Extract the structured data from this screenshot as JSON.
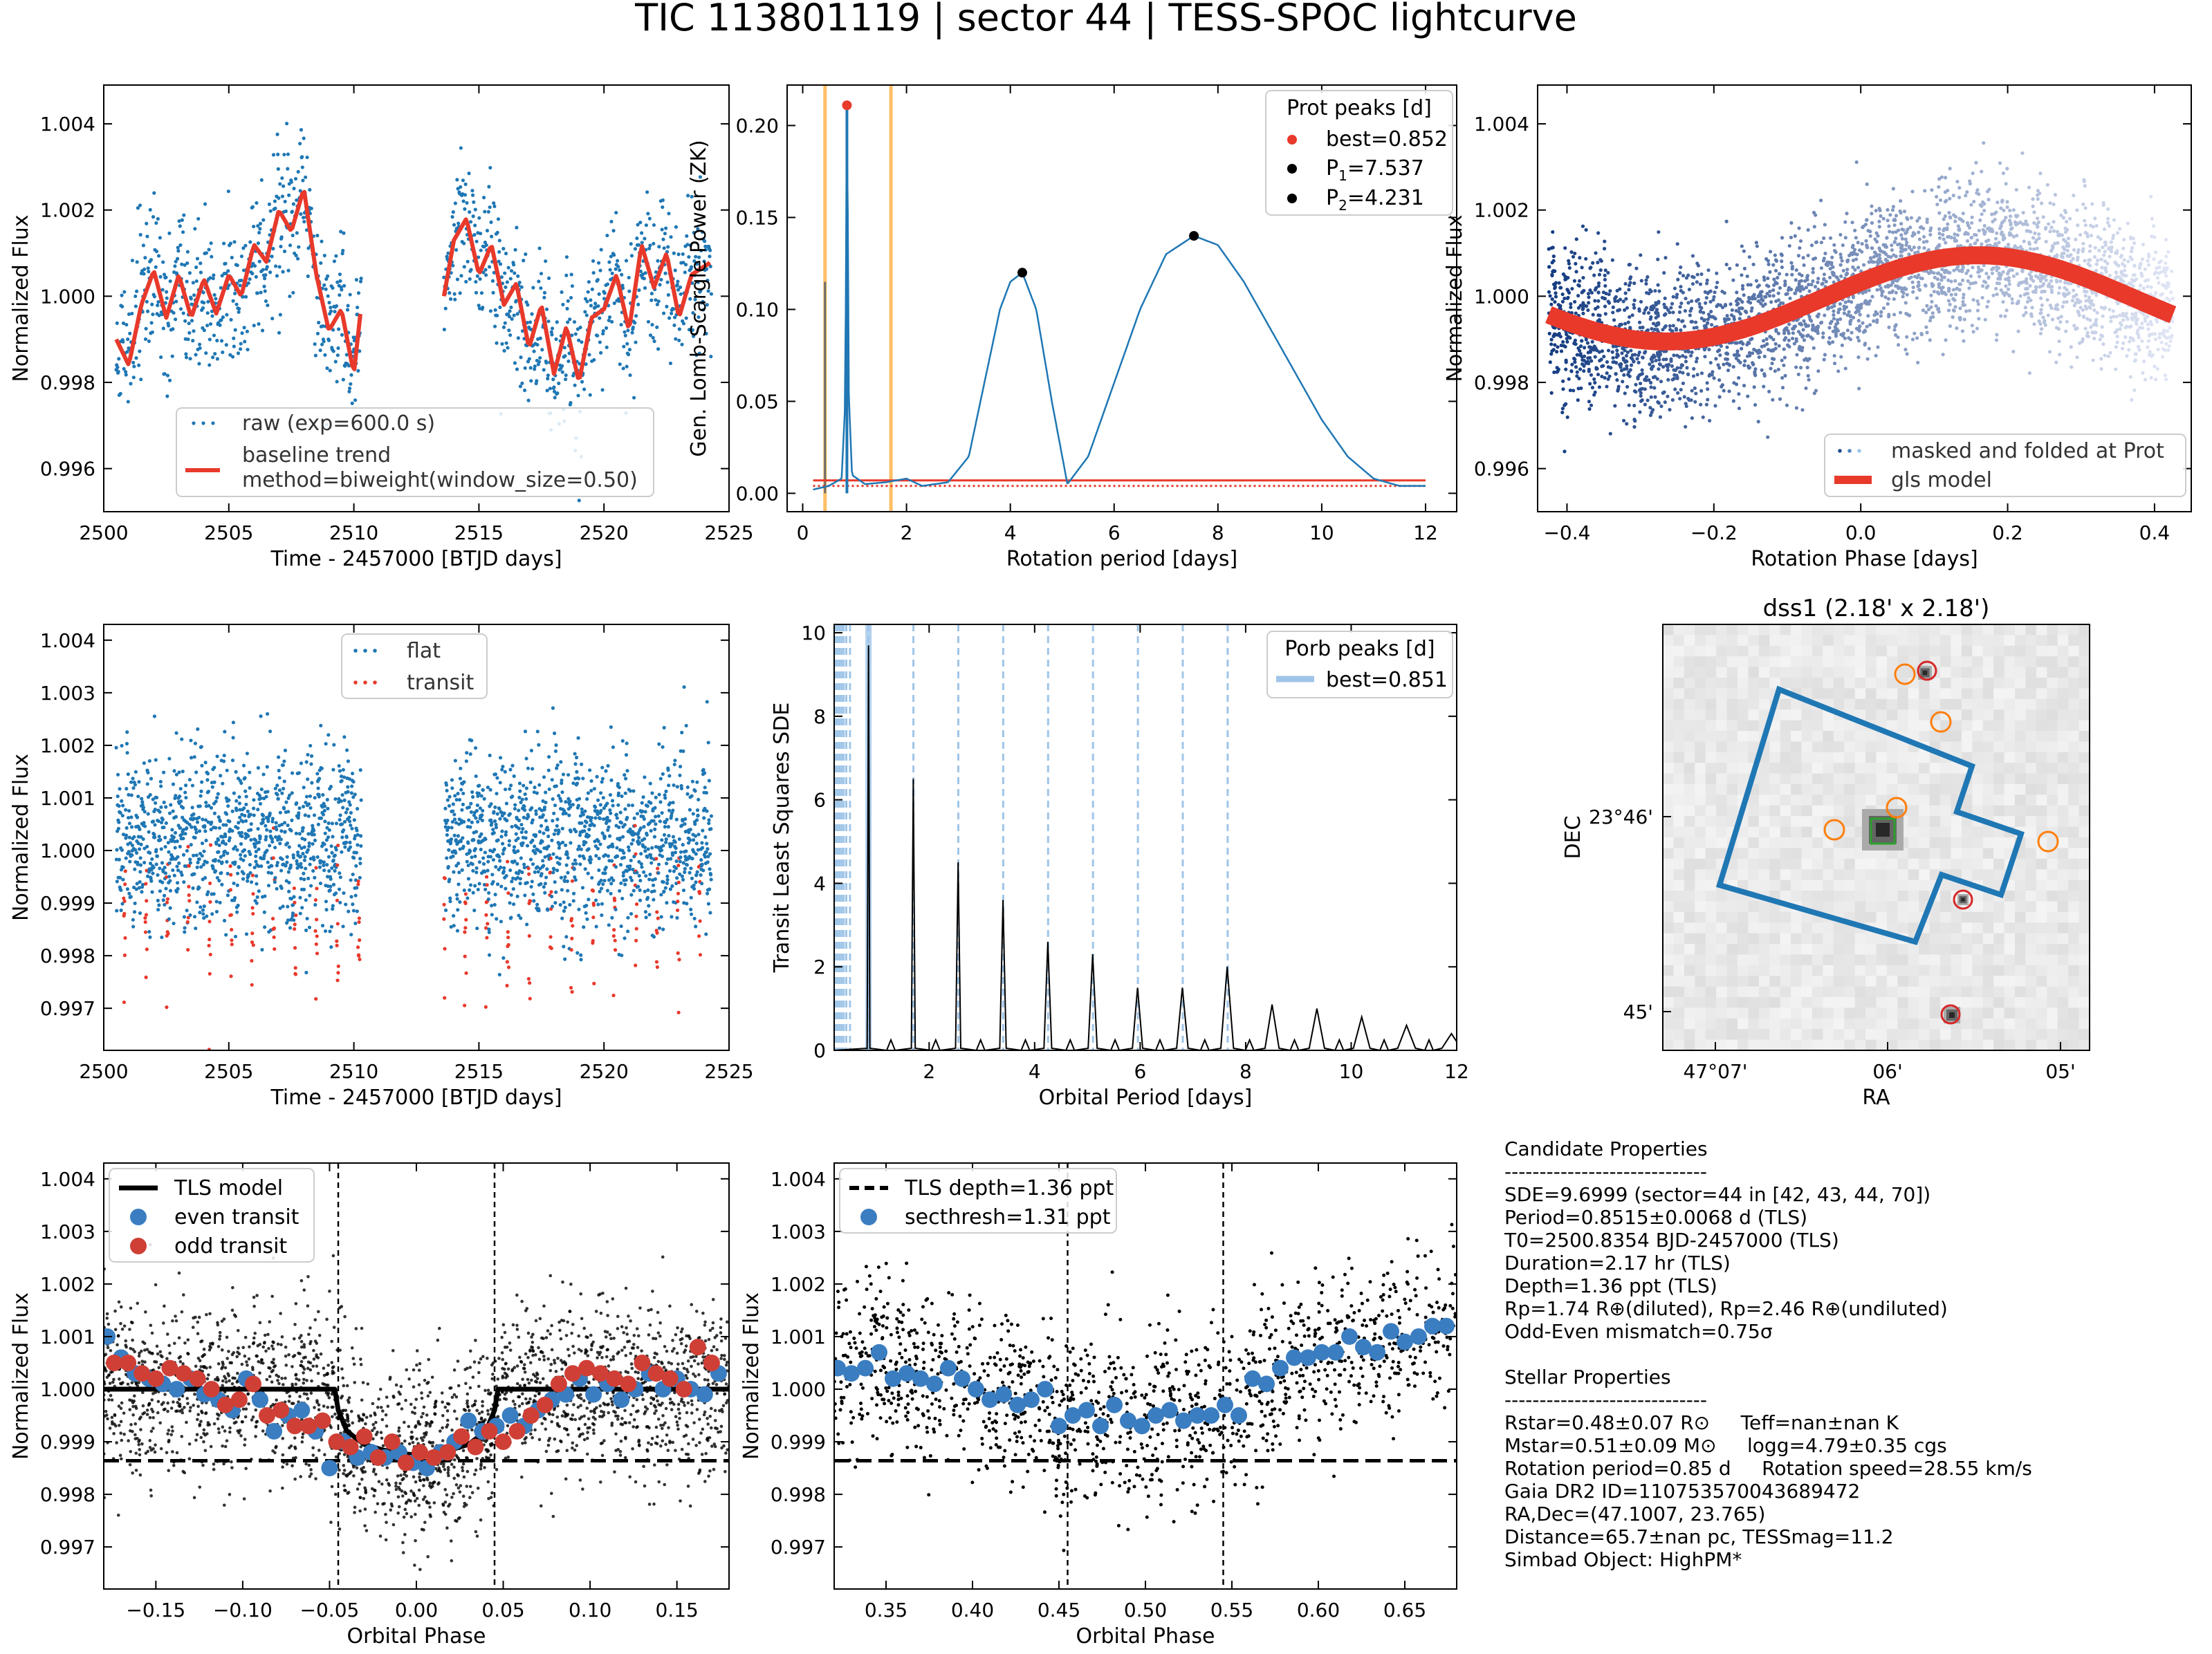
{
  "title": "TIC 113801119 | sector 44 | TESS-SPOC lightcurve",
  "colors": {
    "blue": "#1f77b4",
    "red": "#e8392b",
    "orange": "#ffbf66",
    "black": "#000000",
    "lightblue": "#9fc5e8"
  },
  "panels": {
    "raw": {
      "xlabel": "Time - 2457000 [BTJD days]",
      "ylabel": "Normalized Flux",
      "xlim": [
        2500,
        2525
      ],
      "ylim": [
        0.995,
        1.0049
      ],
      "xticks": [
        "2500",
        "2505",
        "2510",
        "2515",
        "2520",
        "2525"
      ],
      "yticks": [
        "0.996",
        "0.998",
        "1.000",
        "1.002",
        "1.004"
      ],
      "legend": [
        "raw (exp=600.0 s)",
        "baseline trend",
        "method=biweight(window_size=0.50)"
      ]
    },
    "gls": {
      "xlabel": "Rotation period [days]",
      "ylabel": "Gen. Lomb-Scargle Power (ZK)",
      "xlim": [
        -0.3,
        12.6
      ],
      "ylim": [
        -0.01,
        0.222
      ],
      "xticks": [
        "0",
        "2",
        "4",
        "6",
        "8",
        "10",
        "12"
      ],
      "yticks": [
        "0.00",
        "0.05",
        "0.10",
        "0.15",
        "0.20"
      ],
      "legend_title": "Prot peaks [d]",
      "legend": [
        "best=0.852",
        "P",
        "1",
        "=7.537",
        "P",
        "2",
        "=4.231"
      ]
    },
    "fold": {
      "xlabel": "Rotation Phase [days]",
      "ylabel": "Normalized Flux",
      "xlim": [
        -0.44,
        0.45
      ],
      "ylim": [
        0.995,
        1.0049
      ],
      "xticks": [
        "−0.4",
        "−0.2",
        "0.0",
        "0.2",
        "0.4"
      ],
      "yticks": [
        "0.996",
        "0.998",
        "1.000",
        "1.002",
        "1.004"
      ],
      "legend": [
        "masked and folded at Prot",
        "gls model"
      ]
    },
    "flat": {
      "xlabel": "Time - 2457000 [BTJD days]",
      "ylabel": "Normalized Flux",
      "xlim": [
        2500,
        2525
      ],
      "ylim": [
        0.9962,
        1.0043
      ],
      "xticks": [
        "2500",
        "2505",
        "2510",
        "2515",
        "2520",
        "2525"
      ],
      "yticks": [
        "0.997",
        "0.998",
        "0.999",
        "1.000",
        "1.001",
        "1.002",
        "1.003",
        "1.004"
      ],
      "legend": [
        "flat",
        "transit"
      ]
    },
    "tls": {
      "xlabel": "Orbital Period [days]",
      "ylabel": "Transit Least Squares SDE",
      "xlim": [
        0.2,
        12
      ],
      "ylim": [
        0,
        10.2
      ],
      "xticks": [
        "2",
        "4",
        "6",
        "8",
        "10",
        "12"
      ],
      "yticks": [
        "0",
        "2",
        "4",
        "6",
        "8",
        "10"
      ],
      "legend_title": "Porb peaks [d]",
      "legend": [
        "best=0.851"
      ]
    },
    "dss": {
      "title": "dss1 (2.18' x 2.18')",
      "xlabel": "RA",
      "ylabel": "DEC",
      "xticks": [
        "47°07'",
        "06'",
        "05'"
      ],
      "yticks": [
        "23°46'",
        "45'"
      ]
    },
    "phase": {
      "xlabel": "Orbital Phase",
      "ylabel": "Normalized Flux",
      "xlim": [
        -0.18,
        0.18
      ],
      "ylim": [
        0.9962,
        1.0043
      ],
      "xticks": [
        "−0.15",
        "−0.10",
        "−0.05",
        "0.00",
        "0.05",
        "0.10",
        "0.15"
      ],
      "yticks": [
        "0.997",
        "0.998",
        "0.999",
        "1.000",
        "1.001",
        "1.002",
        "1.003",
        "1.004"
      ],
      "legend": [
        "TLS model",
        "even transit",
        "odd transit"
      ]
    },
    "sec": {
      "xlabel": "Orbital Phase",
      "ylabel": "Normalized Flux",
      "xlim": [
        0.32,
        0.68
      ],
      "ylim": [
        0.9962,
        1.0043
      ],
      "xticks": [
        "0.35",
        "0.40",
        "0.45",
        "0.50",
        "0.55",
        "0.60",
        "0.65"
      ],
      "yticks": [
        "0.997",
        "0.998",
        "0.999",
        "1.000",
        "1.001",
        "1.002",
        "1.003",
        "1.004"
      ],
      "legend": [
        "TLS depth=1.36 ppt",
        "secthresh=1.31 ppt"
      ]
    }
  },
  "props": {
    "cand_title": "Candidate Properties",
    "sep": "-----------------------------",
    "cand": [
      "SDE=9.6999 (sector=44 in [42, 43, 44, 70])",
      "Period=0.8515±0.0068 d (TLS)",
      "T0=2500.8354 BJD-2457000 (TLS)",
      "Duration=2.17 hr (TLS)",
      "Depth=1.36 ppt (TLS)",
      "Rp=1.74 R⊕(diluted), Rp=2.46 R⊕(undiluted)",
      "Odd-Even mismatch=0.75σ"
    ],
    "star_title": "Stellar Properties",
    "star": [
      "Rstar=0.48±0.07 R⊙     Teff=nan±nan K",
      "Mstar=0.51±0.09 M⊙     logg=4.79±0.35 cgs",
      "Rotation period=0.85 d     Rotation speed=28.55 km/s",
      "Gaia DR2 ID=110753570043689472",
      "RA,Dec=(47.1007, 23.765)",
      "Distance=65.7±nan pc, TESSmag=11.2",
      "Simbad Object: HighPM*"
    ]
  },
  "chart_data": [
    {
      "type": "scatter",
      "panel": "raw",
      "title": "",
      "xlabel": "Time - 2457000 [BTJD days]",
      "ylabel": "Normalized Flux",
      "xlim": [
        2500,
        2525
      ],
      "ylim": [
        0.995,
        1.0049
      ],
      "series": [
        {
          "name": "raw (exp=600.0 s)",
          "type": "scatter"
        },
        {
          "name": "baseline trend",
          "type": "line",
          "x": [
            2500.5,
            2501,
            2501.5,
            2502,
            2502.5,
            2503,
            2503.5,
            2504,
            2504.5,
            2505,
            2505.5,
            2506,
            2506.5,
            2507,
            2507.5,
            2508,
            2508.5,
            2509,
            2509.5,
            2510,
            2510.3,
            2513.6,
            2514,
            2514.5,
            2515,
            2515.5,
            2516,
            2516.5,
            2517,
            2517.5,
            2518,
            2518.5,
            2519,
            2519.5,
            2520,
            2520.5,
            2521,
            2521.5,
            2522,
            2522.5,
            2523,
            2523.5,
            2524.3
          ],
          "y": [
            0.999,
            0.9984,
            0.9998,
            1.0006,
            0.9995,
            1.0005,
            0.9995,
            1.0004,
            0.9996,
            1.0005,
            1.0,
            1.0012,
            1.0008,
            1.002,
            1.0015,
            1.0025,
            1.0005,
            0.9992,
            0.9997,
            0.9982,
            0.9998,
            1.0,
            1.0013,
            1.0018,
            1.0005,
            1.0012,
            0.9998,
            1.0003,
            0.9988,
            0.9998,
            0.9982,
            0.9993,
            0.998,
            0.9995,
            0.9997,
            1.0005,
            0.9992,
            1.0012,
            1.0002,
            1.001,
            0.9995,
            1.0005,
            1.0008
          ]
        }
      ]
    },
    {
      "type": "line",
      "panel": "gls",
      "title": "",
      "xlabel": "Rotation period [days]",
      "ylabel": "Gen. Lomb-Scargle Power (ZK)",
      "xlim": [
        -0.3,
        12.6
      ],
      "ylim": [
        -0.01,
        0.222
      ],
      "peaks": [
        {
          "label": "best=0.852",
          "x": 0.852,
          "y": 0.211
        },
        {
          "label": "P1=7.537",
          "x": 7.537,
          "y": 0.14
        },
        {
          "label": "P2=4.231",
          "x": 4.231,
          "y": 0.12
        }
      ],
      "vlines": [
        0.43,
        1.7
      ],
      "fap_level": 0.007,
      "x": [
        0.2,
        0.5,
        0.75,
        0.82,
        0.852,
        0.88,
        0.95,
        1.2,
        1.6,
        2.0,
        2.3,
        2.8,
        3.2,
        3.5,
        3.8,
        4.0,
        4.231,
        4.5,
        4.8,
        5.1,
        5.5,
        6.0,
        6.5,
        7.0,
        7.537,
        8.0,
        8.5,
        9.0,
        9.5,
        10.0,
        10.5,
        11.0,
        11.5,
        12.0
      ],
      "y": [
        0.002,
        0.004,
        0.008,
        0.05,
        0.211,
        0.06,
        0.01,
        0.005,
        0.006,
        0.008,
        0.004,
        0.006,
        0.02,
        0.06,
        0.1,
        0.115,
        0.12,
        0.1,
        0.05,
        0.005,
        0.02,
        0.06,
        0.1,
        0.13,
        0.14,
        0.135,
        0.115,
        0.09,
        0.065,
        0.04,
        0.02,
        0.008,
        0.004,
        0.004
      ]
    },
    {
      "type": "scatter",
      "panel": "fold",
      "title": "",
      "xlabel": "Rotation Phase [days]",
      "ylabel": "Normalized Flux",
      "xlim": [
        -0.44,
        0.45
      ],
      "ylim": [
        0.995,
        1.0049
      ],
      "series": [
        {
          "name": "masked and folded at Prot"
        },
        {
          "name": "gls model",
          "model": "sinusoid",
          "mean": 0.99995,
          "amplitude": 0.001,
          "peak_phase": 0.16
        }
      ]
    },
    {
      "type": "scatter",
      "panel": "flat",
      "title": "",
      "xlabel": "Time - 2457000 [BTJD days]",
      "ylabel": "Normalized Flux",
      "xlim": [
        2500,
        2525
      ],
      "ylim": [
        0.9962,
        1.0043
      ],
      "series": [
        {
          "name": "flat"
        },
        {
          "name": "transit"
        }
      ]
    },
    {
      "type": "line",
      "panel": "tls",
      "title": "",
      "xlabel": "Orbital Period [days]",
      "ylabel": "Transit Least Squares SDE",
      "xlim": [
        0.2,
        12
      ],
      "ylim": [
        0,
        10.2
      ],
      "best_period": 0.851,
      "peaks_x": [
        0.851,
        1.7,
        2.55,
        3.4,
        4.25,
        5.1,
        5.95,
        6.8,
        7.65,
        8.5,
        9.35,
        10.2,
        11.05,
        11.9
      ],
      "peaks_y": [
        9.7,
        6.5,
        4.5,
        3.6,
        2.6,
        2.3,
        1.5,
        1.5,
        2.0,
        1.1,
        1.0,
        0.8,
        0.6,
        0.4
      ],
      "harmonic_lines": [
        0.851,
        1.702,
        2.553,
        3.404,
        4.255,
        5.106,
        5.957,
        6.808,
        7.659
      ]
    },
    {
      "type": "table",
      "panel": "dss",
      "title": "dss1 (2.18' x 2.18')",
      "xlabel": "RA",
      "ylabel": "DEC",
      "aperture_pixels": [
        [
          2,
          0
        ],
        [
          5,
          1
        ],
        [
          4,
          3
        ],
        [
          6,
          4
        ],
        [
          5,
          6
        ],
        [
          2,
          5
        ],
        [
          0,
          4
        ]
      ]
    },
    {
      "type": "scatter",
      "panel": "phase",
      "title": "",
      "xlabel": "Orbital Phase",
      "ylabel": "Normalized Flux",
      "xlim": [
        -0.18,
        0.18
      ],
      "ylim": [
        0.9962,
        1.0043
      ],
      "depth_level": 0.99864,
      "vlines": [
        -0.045,
        0.045
      ],
      "series": [
        {
          "name": "TLS model",
          "type": "line",
          "x": [
            -0.18,
            -0.047,
            -0.045,
            -0.04,
            -0.03,
            -0.02,
            -0.01,
            0.0,
            0.01,
            0.02,
            0.03,
            0.04,
            0.045,
            0.047,
            0.18
          ],
          "y": [
            1.0,
            1.0,
            0.9996,
            0.9992,
            0.99895,
            0.99885,
            0.99878,
            0.99875,
            0.99878,
            0.99885,
            0.99895,
            0.9992,
            0.9996,
            1.0,
            1.0
          ]
        },
        {
          "name": "even transit",
          "type": "scatter",
          "x": [
            -0.178,
            -0.17,
            -0.162,
            -0.154,
            -0.146,
            -0.138,
            -0.13,
            -0.122,
            -0.114,
            -0.106,
            -0.098,
            -0.09,
            -0.082,
            -0.074,
            -0.066,
            -0.058,
            -0.05,
            -0.042,
            -0.034,
            -0.026,
            -0.018,
            -0.01,
            -0.002,
            0.006,
            0.014,
            0.022,
            0.03,
            0.038,
            0.046,
            0.054,
            0.062,
            0.07,
            0.078,
            0.086,
            0.094,
            0.102,
            0.11,
            0.118,
            0.126,
            0.134,
            0.142,
            0.15,
            0.158,
            0.166,
            0.174
          ],
          "y": [
            1.001,
            1.0006,
            1.0003,
            1.0002,
            1.0001,
            1.0,
            1.0002,
            0.9999,
            0.9998,
            0.9996,
            1.0002,
            0.9998,
            0.9992,
            0.9995,
            0.9996,
            0.9992,
            0.9985,
            0.999,
            0.9987,
            0.9988,
            0.9987,
            0.9988,
            0.9986,
            0.9985,
            0.9988,
            0.999,
            0.9994,
            0.9992,
            0.9993,
            0.9995,
            0.9993,
            0.9996,
            0.9998,
            0.9999,
            1.0002,
            0.9999,
            1.0001,
            0.9998,
            1.0,
            1.0003,
            1.0,
            1.0002,
            1.0,
            0.9999,
            1.0003
          ]
        },
        {
          "name": "odd transit",
          "type": "scatter",
          "x": [
            -0.174,
            -0.166,
            -0.158,
            -0.15,
            -0.142,
            -0.134,
            -0.126,
            -0.118,
            -0.11,
            -0.102,
            -0.094,
            -0.086,
            -0.078,
            -0.07,
            -0.062,
            -0.054,
            -0.046,
            -0.038,
            -0.03,
            -0.022,
            -0.014,
            -0.006,
            0.002,
            0.01,
            0.018,
            0.026,
            0.034,
            0.042,
            0.05,
            0.058,
            0.066,
            0.074,
            0.082,
            0.09,
            0.098,
            0.106,
            0.114,
            0.122,
            0.13,
            0.138,
            0.146,
            0.154,
            0.162,
            0.17
          ],
          "y": [
            1.0005,
            1.0005,
            1.0003,
            1.0002,
            1.0004,
            1.0003,
            1.0002,
            1.0,
            0.9997,
            0.9998,
            1.0001,
            0.9995,
            0.9996,
            0.9993,
            0.9993,
            0.9994,
            0.999,
            0.9989,
            0.9991,
            0.9987,
            0.999,
            0.9986,
            0.9988,
            0.9987,
            0.9988,
            0.9991,
            0.9989,
            0.9992,
            0.999,
            0.9992,
            0.9995,
            0.9997,
            1.0001,
            1.0003,
            1.0004,
            1.0003,
            1.0002,
            1.0001,
            1.0005,
            1.0003,
            1.0002,
            1.0,
            1.0008,
            1.0005
          ]
        }
      ]
    },
    {
      "type": "scatter",
      "panel": "sec",
      "title": "",
      "xlabel": "Orbital Phase",
      "ylabel": "Normalized Flux",
      "xlim": [
        0.32,
        0.68
      ],
      "ylim": [
        0.9962,
        1.0043
      ],
      "depth_level": 0.99864,
      "vlines": [
        0.455,
        0.545
      ],
      "series": [
        {
          "name": "TLS depth=1.36 ppt",
          "type": "hline",
          "y": 0.99864
        },
        {
          "name": "secthresh=1.31 ppt",
          "type": "scatter",
          "x": [
            0.322,
            0.33,
            0.338,
            0.346,
            0.354,
            0.362,
            0.37,
            0.378,
            0.386,
            0.394,
            0.402,
            0.41,
            0.418,
            0.426,
            0.434,
            0.442,
            0.45,
            0.458,
            0.466,
            0.474,
            0.482,
            0.49,
            0.498,
            0.506,
            0.514,
            0.522,
            0.53,
            0.538,
            0.546,
            0.554,
            0.562,
            0.57,
            0.578,
            0.586,
            0.594,
            0.602,
            0.61,
            0.618,
            0.626,
            0.634,
            0.642,
            0.65,
            0.658,
            0.666,
            0.674
          ],
          "y": [
            1.0004,
            1.0003,
            1.0004,
            1.0007,
            1.0002,
            1.0003,
            1.0002,
            1.0001,
            1.0004,
            1.0002,
            1.0,
            0.9998,
            0.9999,
            0.9997,
            0.9998,
            1.0,
            0.9993,
            0.9995,
            0.9996,
            0.9993,
            0.9997,
            0.9994,
            0.9993,
            0.9995,
            0.9996,
            0.9994,
            0.9995,
            0.9995,
            0.9997,
            0.9995,
            1.0002,
            1.0001,
            1.0004,
            1.0006,
            1.0006,
            1.0007,
            1.0007,
            1.001,
            1.0008,
            1.0007,
            1.0011,
            1.0009,
            1.001,
            1.0012,
            1.0012
          ]
        }
      ]
    }
  ]
}
